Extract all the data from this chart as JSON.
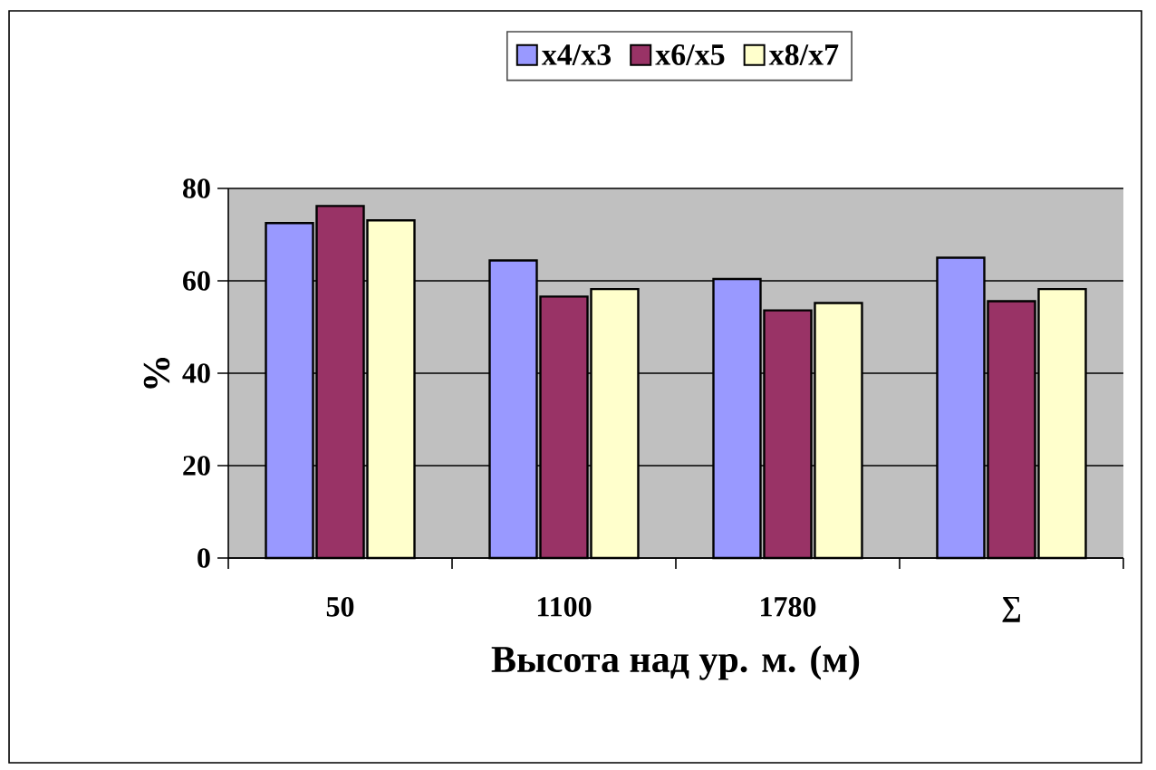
{
  "chart_data": {
    "type": "bar",
    "xlabel": "Высота над ур. м. (м)",
    "ylabel": "%",
    "categories": [
      "50",
      "1100",
      "1780",
      "∑"
    ],
    "series": [
      {
        "name": "x4/x3",
        "color": "#9999ff",
        "values": [
          72.5,
          64.4,
          60.4,
          65.0
        ]
      },
      {
        "name": "x6/x5",
        "color": "#993366",
        "values": [
          76.2,
          56.6,
          53.6,
          55.6
        ]
      },
      {
        "name": "x8/x7",
        "color": "#ffffcc",
        "values": [
          73.1,
          58.2,
          55.2,
          58.2
        ]
      }
    ],
    "ylim": [
      0,
      80
    ],
    "yticks": [
      0,
      20,
      40,
      60,
      80
    ],
    "grid": "y",
    "legend": "top"
  }
}
